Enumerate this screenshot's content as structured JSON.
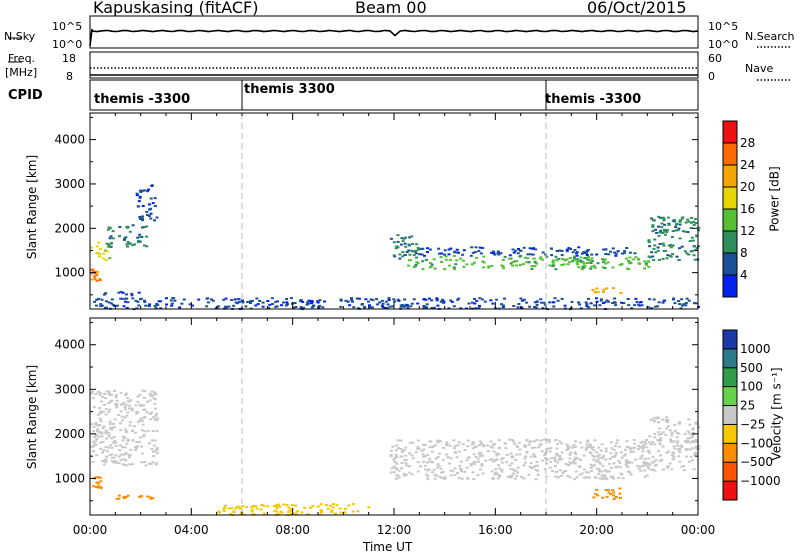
{
  "header": {
    "station": "Kapuskasing (fitACF)",
    "beam": "Beam 00",
    "date": "06/Oct/2015"
  },
  "meta_panels": {
    "nsky_label": "N.Sky",
    "nsky_ticks": [
      "10^5",
      "10^0"
    ],
    "nsearch_label": "N.Search",
    "nsearch_ticks": [
      "10^5",
      "10^0"
    ],
    "freq_label_1": "Freq.",
    "freq_label_2": "[MHz]",
    "freq_ticks": [
      "18",
      "8"
    ],
    "nave_label": "Nave",
    "nave_ticks": [
      "60",
      "0"
    ],
    "cpid_label": "CPID",
    "cpid_entries": [
      {
        "text": "themis -3300",
        "hour": 0.0
      },
      {
        "text": "themis 3300",
        "hour": 6.0
      },
      {
        "text": "themis -3300",
        "hour": 18.0
      }
    ]
  },
  "chart_data": [
    {
      "type": "heatmap",
      "title": "Power",
      "xlabel": "",
      "ylabel": "Slant Range [km]",
      "xlim": [
        0,
        24
      ],
      "ylim": [
        180,
        4600
      ],
      "yticks": [
        1000,
        2000,
        3000,
        4000
      ],
      "colorbar_label": "Power [dB]",
      "colorbar_ticks": [
        "28",
        "24",
        "20",
        "16",
        "12",
        "8",
        "4"
      ],
      "colorbar_colors": [
        "#ee1111",
        "#ff6a00",
        "#f5a400",
        "#e8d400",
        "#55c035",
        "#2e8f5a",
        "#1a4f9a",
        "#0022ee"
      ],
      "regions": [
        {
          "x": [
            0.0,
            0.4
          ],
          "y": [
            800,
            1100
          ],
          "value": 26
        },
        {
          "x": [
            0.0,
            0.8
          ],
          "y": [
            1300,
            1700
          ],
          "value": 18
        },
        {
          "x": [
            0.6,
            2.2
          ],
          "y": [
            1600,
            2100
          ],
          "value": 10
        },
        {
          "x": [
            1.8,
            2.6
          ],
          "y": [
            2200,
            3000
          ],
          "value": 6
        },
        {
          "x": [
            0.5,
            2.0
          ],
          "y": [
            500,
            600
          ],
          "value": 6
        },
        {
          "x": [
            11.8,
            13.0
          ],
          "y": [
            1300,
            1900
          ],
          "value": 12
        },
        {
          "x": [
            12.5,
            22.0
          ],
          "y": [
            1100,
            1400
          ],
          "value": 15
        },
        {
          "x": [
            13.0,
            21.5
          ],
          "y": [
            1400,
            1600
          ],
          "value": 6
        },
        {
          "x": [
            19.6,
            20.9
          ],
          "y": [
            550,
            700
          ],
          "value": 24
        },
        {
          "x": [
            22.0,
            24.0
          ],
          "y": [
            1300,
            2300
          ],
          "value": 10
        },
        {
          "x": [
            0.0,
            24.0
          ],
          "y": [
            200,
            450
          ],
          "value": 8
        }
      ]
    },
    {
      "type": "heatmap",
      "title": "Velocity",
      "xlabel": "Time UT",
      "ylabel": "Slant Range [km]",
      "xlim": [
        0,
        24
      ],
      "ylim": [
        180,
        4600
      ],
      "yticks": [
        1000,
        2000,
        3000,
        4000
      ],
      "xtick_labels": [
        "00:00",
        "04:00",
        "08:00",
        "12:00",
        "16:00",
        "20:00",
        "00:00"
      ],
      "colorbar_label": "Velocity [m s⁻¹]",
      "colorbar_ticks": [
        "1000",
        "500",
        "100",
        "25",
        "−25",
        "−100",
        "−500",
        "−1000"
      ],
      "colorbar_colors": [
        "#1a3aa8",
        "#2b7a8a",
        "#2e9e4a",
        "#66d24a",
        "#c8c8c8",
        "#f5c800",
        "#ff8c00",
        "#ff5500",
        "#ee1111"
      ],
      "regions": [
        {
          "x": [
            0.0,
            0.4
          ],
          "y": [
            800,
            1100
          ],
          "value": -400
        },
        {
          "x": [
            0.0,
            2.6
          ],
          "y": [
            1300,
            3000
          ],
          "value": 0
        },
        {
          "x": [
            1.0,
            2.5
          ],
          "y": [
            550,
            650
          ],
          "value": -300
        },
        {
          "x": [
            11.8,
            22.0
          ],
          "y": [
            1000,
            1900
          ],
          "value": 0
        },
        {
          "x": [
            19.6,
            20.9
          ],
          "y": [
            550,
            800
          ],
          "value": -200
        },
        {
          "x": [
            22.0,
            24.0
          ],
          "y": [
            1200,
            2400
          ],
          "value": 0
        },
        {
          "x": [
            5.0,
            11.0
          ],
          "y": [
            200,
            450
          ],
          "value": -50
        }
      ]
    }
  ]
}
